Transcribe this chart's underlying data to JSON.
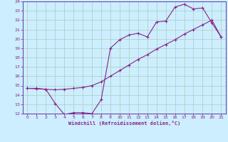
{
  "xlabel": "Windchill (Refroidissement éolien,°C)",
  "bg_color": "#cceeff",
  "grid_color": "#aaccbb",
  "line_color": "#882288",
  "spine_color": "#6633aa",
  "xlim": [
    -0.5,
    21.5
  ],
  "ylim": [
    12,
    24
  ],
  "xticks": [
    0,
    1,
    2,
    3,
    4,
    5,
    6,
    7,
    8,
    9,
    10,
    11,
    12,
    13,
    14,
    15,
    16,
    17,
    18,
    19,
    20,
    21
  ],
  "yticks": [
    12,
    13,
    14,
    15,
    16,
    17,
    18,
    19,
    20,
    21,
    22,
    23,
    24
  ],
  "line1_x": [
    0,
    1,
    2,
    3,
    4,
    5,
    6,
    7,
    8,
    9,
    10,
    11,
    12,
    13,
    14,
    15,
    16,
    17,
    18,
    19,
    20,
    21
  ],
  "line1_y": [
    14.7,
    14.7,
    14.6,
    13.1,
    11.9,
    12.1,
    12.1,
    12.0,
    13.5,
    19.0,
    19.9,
    20.4,
    20.6,
    20.2,
    21.8,
    21.9,
    23.4,
    23.7,
    23.2,
    23.3,
    21.7,
    20.2
  ],
  "line2_x": [
    0,
    1,
    2,
    3,
    4,
    5,
    6,
    7,
    8,
    9,
    10,
    11,
    12,
    13,
    14,
    15,
    16,
    17,
    18,
    19,
    20,
    21
  ],
  "line2_y": [
    14.7,
    14.65,
    14.6,
    14.55,
    14.6,
    14.7,
    14.8,
    15.0,
    15.4,
    16.0,
    16.6,
    17.2,
    17.8,
    18.3,
    18.9,
    19.4,
    19.9,
    20.5,
    21.0,
    21.5,
    22.0,
    20.2
  ]
}
